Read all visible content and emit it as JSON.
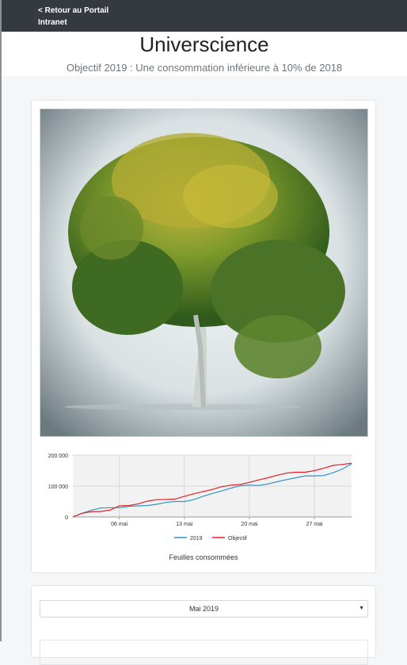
{
  "nav": {
    "back_label": "< Retour au Portail Intranet"
  },
  "header": {
    "title": "Universcience",
    "subtitle": "Objectif 2019 : Une consommation inférieure à 10% de 2018"
  },
  "colors": {
    "topbar": "#343a40",
    "series_2019": "#2f94c4",
    "series_objectif": "#e3202a"
  },
  "chart_caption": "Feuilles consommées",
  "chart_data": {
    "type": "line",
    "title": "",
    "x_ticks": [
      "06 mai",
      "13 mai",
      "20 mai",
      "27 mai"
    ],
    "y_ticks": [
      "0",
      "100 000",
      "200 000"
    ],
    "ylim": [
      0,
      200000
    ],
    "xlim_days": [
      1,
      31
    ],
    "grid": true,
    "legend_position": "bottom",
    "x": [
      1,
      2,
      3,
      4,
      5,
      6,
      7,
      8,
      9,
      10,
      11,
      12,
      13,
      14,
      15,
      16,
      17,
      18,
      19,
      20,
      21,
      22,
      23,
      24,
      25,
      26,
      27,
      28,
      29,
      30,
      31
    ],
    "series": [
      {
        "name": "2019",
        "values": [
          0,
          12000,
          22000,
          29000,
          30000,
          30000,
          34000,
          36000,
          37000,
          41000,
          47000,
          50000,
          50000,
          56000,
          67000,
          76000,
          84000,
          93000,
          101000,
          103000,
          102000,
          107000,
          114000,
          121000,
          127000,
          133000,
          133000,
          134000,
          143000,
          155000,
          172000
        ]
      },
      {
        "name": "Objectif",
        "values": [
          0,
          12000,
          17000,
          18000,
          22000,
          36000,
          37000,
          42000,
          51000,
          56000,
          57000,
          58000,
          67000,
          75000,
          82000,
          89000,
          98000,
          103000,
          105000,
          112000,
          120000,
          127000,
          135000,
          142000,
          145000,
          145000,
          150000,
          158000,
          167000,
          170000,
          174000
        ]
      }
    ]
  },
  "month_select": {
    "value": "Mai 2019"
  }
}
